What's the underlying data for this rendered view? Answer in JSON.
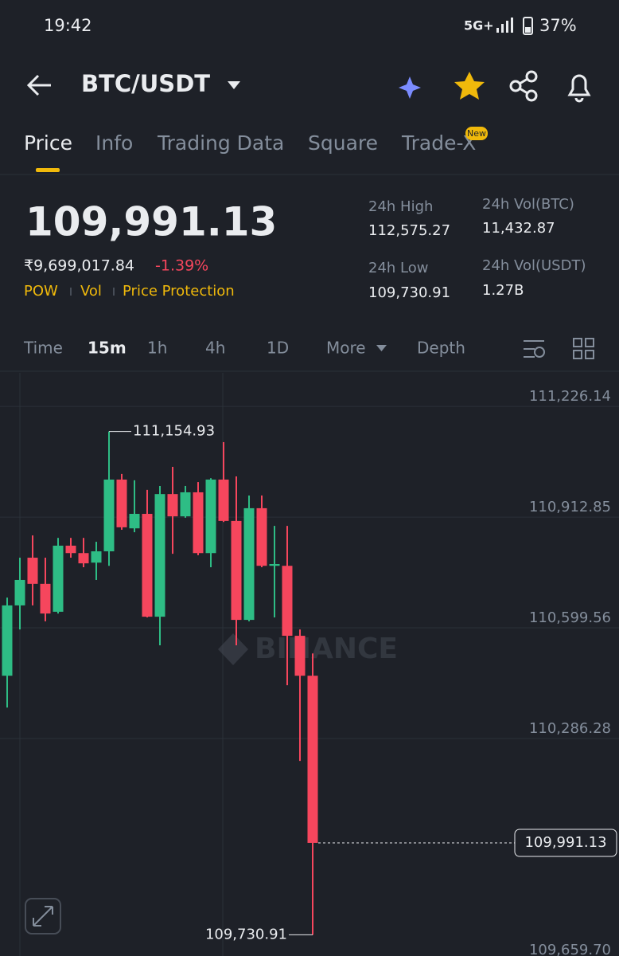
{
  "status_bar": {
    "time": "19:42",
    "network": "5G+",
    "battery": "37%"
  },
  "header": {
    "pair": "BTC/USDT"
  },
  "tabs": [
    "Price",
    "Info",
    "Trading Data",
    "Square",
    "Trade-X"
  ],
  "tab_badge": "New",
  "price": {
    "last": "109,991.13",
    "local": "₹9,699,017.84",
    "change": "-1.39%"
  },
  "tags": [
    "POW",
    "Vol",
    "Price Protection"
  ],
  "stats": [
    {
      "label": "24h High",
      "value": "112,575.27"
    },
    {
      "label": "24h Low",
      "value": "109,730.91"
    },
    {
      "label": "24h Vol(BTC)",
      "value": "11,432.87"
    },
    {
      "label": "24h Vol(USDT)",
      "value": "1.27B"
    }
  ],
  "intervals": [
    "Time",
    "15m",
    "1h",
    "4h",
    "1D",
    "More",
    "Depth"
  ],
  "chart_data": {
    "type": "candlestick",
    "watermark": "BINANCE",
    "up_color": "#2ebd85",
    "down_color": "#f6465d",
    "ylim": [
      109671,
      111321
    ],
    "yticks": [
      {
        "value": 111226.14,
        "label": "111,226.14"
      },
      {
        "value": 110912.85,
        "label": "110,912.85"
      },
      {
        "value": 110599.56,
        "label": "110,599.56"
      },
      {
        "value": 110286.28,
        "label": "110,286.28"
      },
      {
        "value": 109659.7,
        "label": "109,659.70"
      }
    ],
    "grid": true,
    "open": [
      110464,
      110663,
      110798,
      110724,
      110645,
      110832,
      110811,
      110784,
      110816,
      111019,
      110881,
      110922,
      110631,
      110978,
      110915,
      110983,
      110811,
      111019,
      110902,
      110622,
      110938,
      110775,
      110775,
      110577,
      110464
    ],
    "high": [
      110685,
      110798,
      110861,
      110798,
      110854,
      110854,
      110854,
      110843,
      111154.93,
      111035,
      111017,
      110990,
      111001,
      111055,
      111001,
      111012,
      111023,
      111125,
      111028,
      110974,
      110974,
      110888,
      110888,
      110595,
      110527
    ],
    "low": [
      110374,
      110595,
      110663,
      110618,
      110640,
      110798,
      110771,
      110735,
      110775,
      110877,
      110870,
      110629,
      110550,
      110809,
      110911,
      110805,
      110771,
      110899,
      110550,
      110618,
      110771,
      110629,
      110437,
      110223,
      109730.91
    ],
    "close": [
      110663,
      110735,
      110724,
      110640,
      110832,
      110811,
      110782,
      110816,
      111019,
      110884,
      110922,
      110631,
      110978,
      110915,
      110983,
      110811,
      111019,
      110902,
      110622,
      110938,
      110775,
      110780,
      110577,
      110464,
      109991.13
    ],
    "high_label": {
      "value": 111154.93,
      "label": "111,154.93"
    },
    "low_label": {
      "value": 109730.91,
      "label": "109,730.91"
    },
    "last_label": {
      "value": 109991.13,
      "label": "109,991.13"
    }
  }
}
